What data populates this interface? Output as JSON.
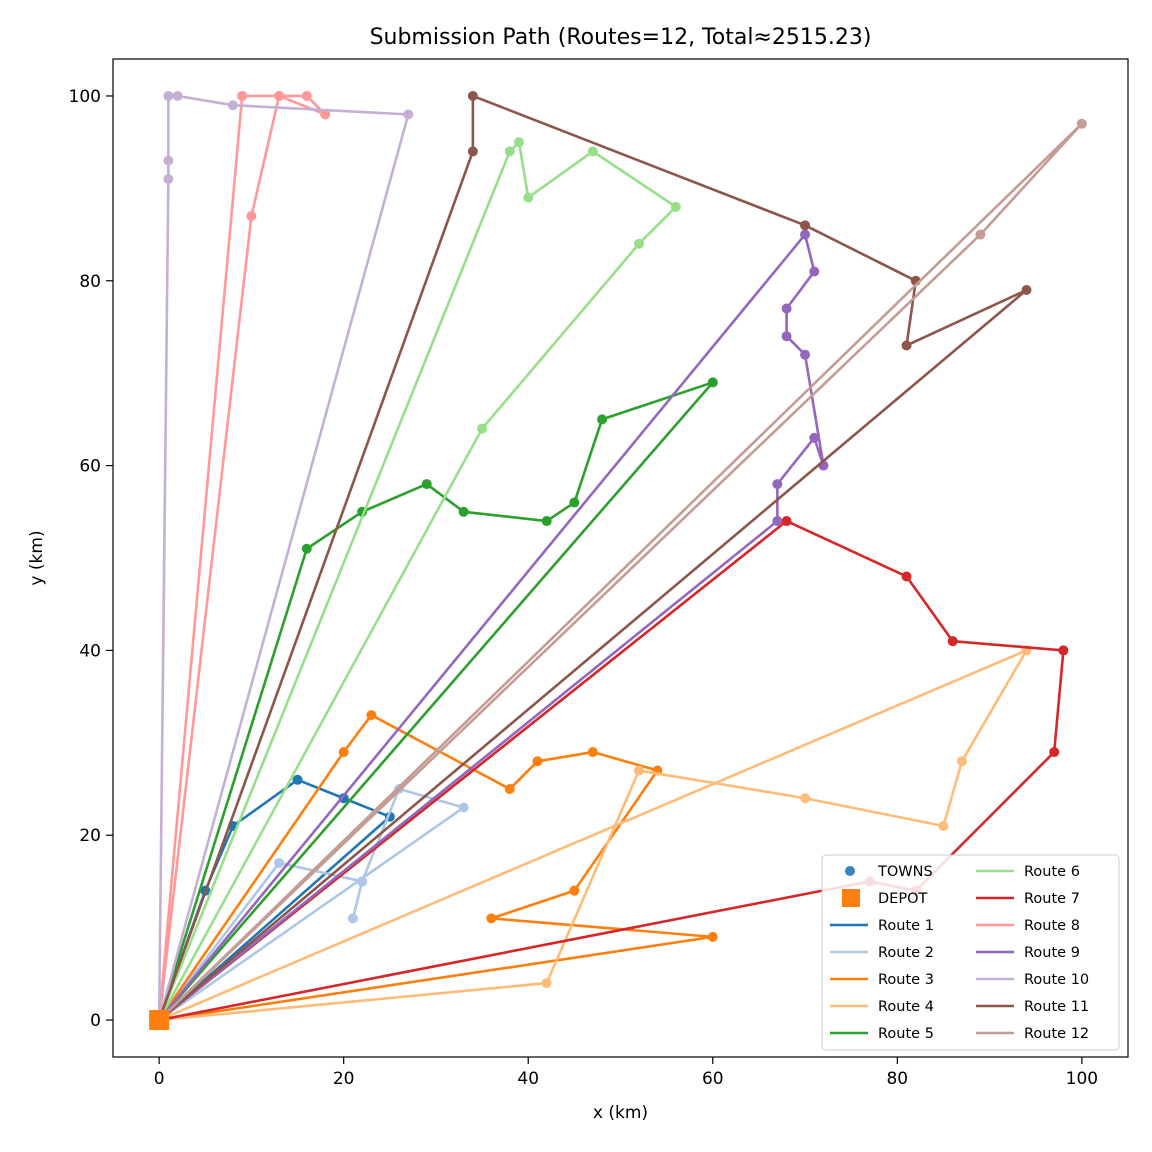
{
  "chart_data": {
    "type": "scatter",
    "title": "Submission Path (Routes=12, Total≈2515.23)",
    "xlabel": "x (km)",
    "ylabel": "y (km)",
    "xlim": [
      -5,
      105
    ],
    "ylim": [
      -4,
      104
    ],
    "xticks": [
      0,
      20,
      40,
      60,
      80,
      100
    ],
    "yticks": [
      0,
      20,
      40,
      60,
      80,
      100
    ],
    "grid": false,
    "legend_position": "bottom-right",
    "legend": {
      "towns_label": "TOWNS",
      "depot_label": "DEPOT"
    },
    "depot": {
      "x": 0,
      "y": 0,
      "color": "#ff7f0e"
    },
    "series": [
      {
        "name": "Route 1",
        "color": "#1f77b4",
        "points": [
          [
            0,
            0
          ],
          [
            5,
            14
          ],
          [
            8,
            21
          ],
          [
            15,
            26
          ],
          [
            20,
            24
          ],
          [
            25,
            22
          ],
          [
            0,
            0
          ]
        ]
      },
      {
        "name": "Route 2",
        "color": "#aec7e8",
        "points": [
          [
            0,
            0
          ],
          [
            13,
            17
          ],
          [
            22,
            15
          ],
          [
            21,
            11
          ],
          [
            22,
            15
          ],
          [
            26,
            25
          ],
          [
            33,
            23
          ],
          [
            0,
            0
          ]
        ]
      },
      {
        "name": "Route 3",
        "color": "#ff7f0e",
        "points": [
          [
            0,
            0
          ],
          [
            20,
            29
          ],
          [
            23,
            33
          ],
          [
            38,
            25
          ],
          [
            41,
            28
          ],
          [
            47,
            29
          ],
          [
            54,
            27
          ],
          [
            45,
            14
          ],
          [
            36,
            11
          ],
          [
            60,
            9
          ],
          [
            0,
            0
          ]
        ]
      },
      {
        "name": "Route 4",
        "color": "#ffbb78",
        "points": [
          [
            0,
            0
          ],
          [
            42,
            4
          ],
          [
            52,
            27
          ],
          [
            70,
            24
          ],
          [
            85,
            21
          ],
          [
            87,
            28
          ],
          [
            94,
            40
          ],
          [
            0,
            0
          ]
        ]
      },
      {
        "name": "Route 5",
        "color": "#2ca02c",
        "points": [
          [
            0,
            0
          ],
          [
            16,
            51
          ],
          [
            22,
            55
          ],
          [
            29,
            58
          ],
          [
            33,
            55
          ],
          [
            42,
            54
          ],
          [
            45,
            56
          ],
          [
            48,
            65
          ],
          [
            60,
            69
          ],
          [
            0,
            0
          ]
        ]
      },
      {
        "name": "Route 6",
        "color": "#98df8a",
        "points": [
          [
            0,
            0
          ],
          [
            35,
            64
          ],
          [
            52,
            84
          ],
          [
            56,
            88
          ],
          [
            47,
            94
          ],
          [
            40,
            89
          ],
          [
            39,
            95
          ],
          [
            38,
            94
          ],
          [
            0,
            0
          ]
        ]
      },
      {
        "name": "Route 7",
        "color": "#d62728",
        "points": [
          [
            0,
            0
          ],
          [
            77,
            15
          ],
          [
            82,
            14
          ],
          [
            97,
            29
          ],
          [
            98,
            40
          ],
          [
            86,
            41
          ],
          [
            81,
            48
          ],
          [
            68,
            54
          ],
          [
            0,
            0
          ]
        ]
      },
      {
        "name": "Route 8",
        "color": "#ff9896",
        "points": [
          [
            0,
            0
          ],
          [
            10,
            87
          ],
          [
            13,
            100
          ],
          [
            16,
            100
          ],
          [
            18,
            98
          ],
          [
            13,
            100
          ],
          [
            9,
            100
          ],
          [
            0,
            0
          ]
        ]
      },
      {
        "name": "Route 9",
        "color": "#9467bd",
        "points": [
          [
            0,
            0
          ],
          [
            67,
            54
          ],
          [
            67,
            58
          ],
          [
            71,
            63
          ],
          [
            72,
            60
          ],
          [
            70,
            72
          ],
          [
            68,
            74
          ],
          [
            68,
            77
          ],
          [
            71,
            81
          ],
          [
            70,
            85
          ],
          [
            0,
            0
          ]
        ]
      },
      {
        "name": "Route 10",
        "color": "#c5b0d5",
        "points": [
          [
            0,
            0
          ],
          [
            1,
            91
          ],
          [
            1,
            93
          ],
          [
            1,
            100
          ],
          [
            2,
            100
          ],
          [
            8,
            99
          ],
          [
            27,
            98
          ],
          [
            0,
            0
          ]
        ]
      },
      {
        "name": "Route 11",
        "color": "#8c564b",
        "points": [
          [
            0,
            0
          ],
          [
            34,
            94
          ],
          [
            34,
            100
          ],
          [
            70,
            86
          ],
          [
            82,
            80
          ],
          [
            81,
            73
          ],
          [
            94,
            79
          ],
          [
            0,
            0
          ]
        ]
      },
      {
        "name": "Route 12",
        "color": "#c49c94",
        "points": [
          [
            0,
            0
          ],
          [
            89,
            85
          ],
          [
            100,
            97
          ],
          [
            0,
            0
          ]
        ]
      }
    ]
  }
}
